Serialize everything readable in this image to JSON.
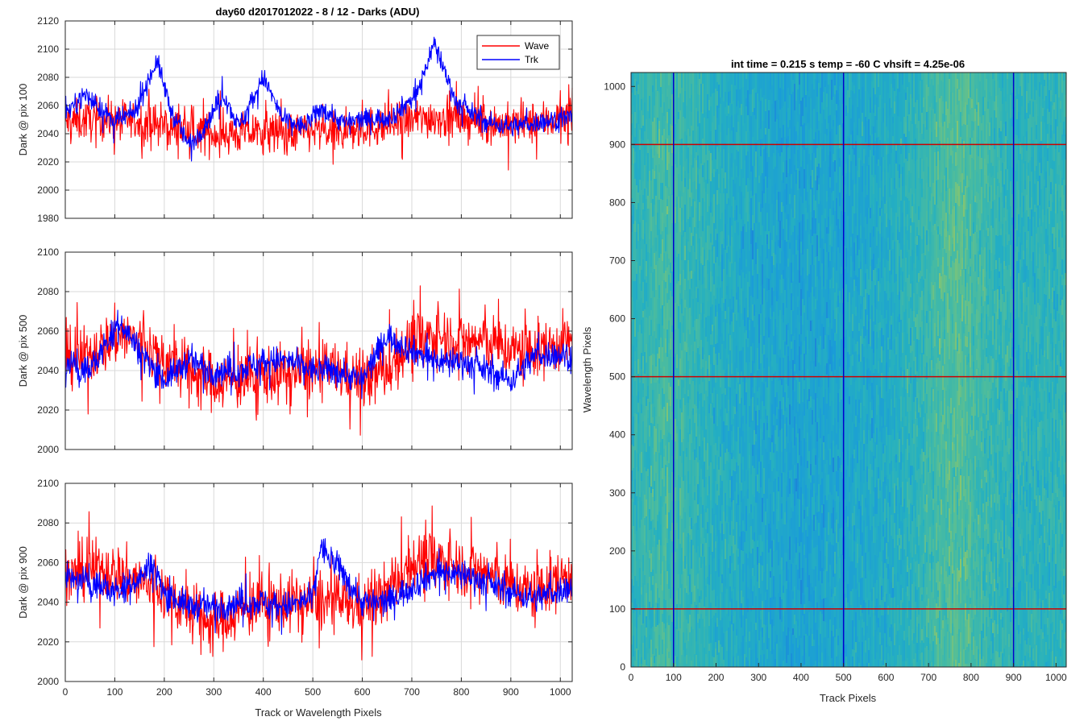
{
  "figure": {
    "title": "day60 d2017012022 - 8 / 12 - Darks (ADU)",
    "shared_xlabel": "Track or Wavelength Pixels"
  },
  "chart_data": [
    {
      "type": "line",
      "ylabel": "Dark @ pix 100",
      "xlim": [
        0,
        1024
      ],
      "ylim": [
        1980,
        2120
      ],
      "xticks": [
        0,
        100,
        200,
        300,
        400,
        500,
        600,
        700,
        800,
        900,
        1000
      ],
      "yticks": [
        1980,
        2000,
        2020,
        2040,
        2060,
        2080,
        2100,
        2120
      ],
      "grid": true,
      "legend": {
        "position": "top-right",
        "entries": [
          "Wave",
          "Trk"
        ]
      },
      "series": [
        {
          "name": "Wave",
          "color": "#ff0000",
          "x": [
            0,
            50,
            100,
            150,
            200,
            250,
            300,
            350,
            400,
            450,
            500,
            550,
            600,
            650,
            700,
            750,
            800,
            850,
            900,
            950,
            1024
          ],
          "mean": [
            2048,
            2050,
            2050,
            2048,
            2045,
            2042,
            2040,
            2040,
            2042,
            2040,
            2042,
            2040,
            2044,
            2046,
            2050,
            2052,
            2050,
            2048,
            2046,
            2048,
            2052
          ],
          "noise": 12
        },
        {
          "name": "Trk",
          "color": "#0000ff",
          "x": [
            0,
            40,
            100,
            140,
            185,
            215,
            250,
            280,
            320,
            350,
            400,
            440,
            480,
            520,
            560,
            600,
            660,
            710,
            745,
            790,
            850,
            900,
            1024
          ],
          "mean": [
            2055,
            2068,
            2048,
            2055,
            2092,
            2055,
            2032,
            2045,
            2068,
            2045,
            2080,
            2050,
            2045,
            2058,
            2048,
            2050,
            2052,
            2068,
            2105,
            2062,
            2048,
            2045,
            2052
          ],
          "noise": 6
        }
      ]
    },
    {
      "type": "line",
      "ylabel": "Dark @ pix 500",
      "xlim": [
        0,
        1024
      ],
      "ylim": [
        2000,
        2100
      ],
      "xticks": [
        0,
        100,
        200,
        300,
        400,
        500,
        600,
        700,
        800,
        900,
        1000
      ],
      "yticks": [
        2000,
        2020,
        2040,
        2060,
        2080,
        2100
      ],
      "grid": true,
      "series": [
        {
          "name": "Wave",
          "color": "#ff0000",
          "x": [
            0,
            50,
            110,
            150,
            200,
            250,
            300,
            350,
            400,
            450,
            500,
            550,
            600,
            650,
            700,
            750,
            800,
            850,
            900,
            950,
            1024
          ],
          "mean": [
            2045,
            2048,
            2058,
            2055,
            2045,
            2040,
            2035,
            2035,
            2038,
            2038,
            2040,
            2040,
            2035,
            2040,
            2055,
            2058,
            2055,
            2055,
            2050,
            2050,
            2055
          ],
          "noise": 12
        },
        {
          "name": "Trk",
          "color": "#0000ff",
          "x": [
            0,
            50,
            110,
            150,
            200,
            250,
            300,
            350,
            400,
            450,
            500,
            550,
            600,
            650,
            700,
            750,
            800,
            850,
            900,
            950,
            1024
          ],
          "mean": [
            2043,
            2040,
            2065,
            2050,
            2035,
            2045,
            2040,
            2040,
            2045,
            2045,
            2040,
            2040,
            2035,
            2058,
            2050,
            2045,
            2045,
            2040,
            2035,
            2048,
            2048
          ],
          "noise": 6
        }
      ]
    },
    {
      "type": "line",
      "ylabel": "Dark @ pix 900",
      "xlabel": "Track or Wavelength Pixels",
      "xlim": [
        0,
        1024
      ],
      "ylim": [
        2000,
        2100
      ],
      "xticks": [
        0,
        100,
        200,
        300,
        400,
        500,
        600,
        700,
        800,
        900,
        1000
      ],
      "yticks": [
        2000,
        2020,
        2040,
        2060,
        2080,
        2100
      ],
      "grid": true,
      "series": [
        {
          "name": "Wave",
          "color": "#ff0000",
          "x": [
            0,
            50,
            100,
            150,
            200,
            250,
            300,
            350,
            400,
            450,
            500,
            550,
            600,
            650,
            700,
            750,
            800,
            850,
            900,
            950,
            1024
          ],
          "mean": [
            2050,
            2058,
            2055,
            2050,
            2045,
            2035,
            2030,
            2035,
            2040,
            2040,
            2040,
            2040,
            2038,
            2045,
            2060,
            2062,
            2058,
            2055,
            2048,
            2045,
            2055
          ],
          "noise": 12
        },
        {
          "name": "Trk",
          "color": "#0000ff",
          "x": [
            0,
            50,
            100,
            150,
            175,
            200,
            250,
            300,
            350,
            400,
            450,
            500,
            515,
            560,
            600,
            650,
            700,
            750,
            800,
            850,
            900,
            950,
            1024
          ],
          "mean": [
            2052,
            2050,
            2045,
            2052,
            2060,
            2045,
            2038,
            2038,
            2040,
            2040,
            2038,
            2042,
            2068,
            2055,
            2040,
            2040,
            2048,
            2055,
            2055,
            2050,
            2045,
            2042,
            2048
          ],
          "noise": 6
        }
      ]
    },
    {
      "type": "heatmap",
      "title": "int time = 0.215 s   temp = -60 C   vhsift = 4.25e-06",
      "xlabel": "Track Pixels",
      "ylabel": "Wavelength Pixels",
      "xlim": [
        0,
        1024
      ],
      "ylim": [
        0,
        1024
      ],
      "xticks": [
        0,
        100,
        200,
        300,
        400,
        500,
        600,
        700,
        800,
        900,
        1000
      ],
      "yticks": [
        0,
        100,
        200,
        300,
        400,
        500,
        600,
        700,
        800,
        900,
        1000
      ],
      "colormap": [
        "#1f6fd8",
        "#1a9cd8",
        "#25b0c0",
        "#4cbc9e",
        "#8cc66c"
      ],
      "column_profile": {
        "x": [
          0,
          40,
          80,
          130,
          200,
          300,
          400,
          480,
          600,
          680,
          720,
          770,
          830,
          900,
          1000,
          1024
        ],
        "level": [
          0.55,
          0.62,
          0.7,
          0.62,
          0.5,
          0.4,
          0.35,
          0.38,
          0.45,
          0.58,
          0.72,
          0.78,
          0.65,
          0.55,
          0.55,
          0.58
        ]
      },
      "markers": {
        "vertical": {
          "color": "#0000cc",
          "x": [
            100,
            500,
            900
          ]
        },
        "horizontal": {
          "color": "#cc0000",
          "y": [
            100,
            500,
            900
          ]
        }
      }
    }
  ]
}
